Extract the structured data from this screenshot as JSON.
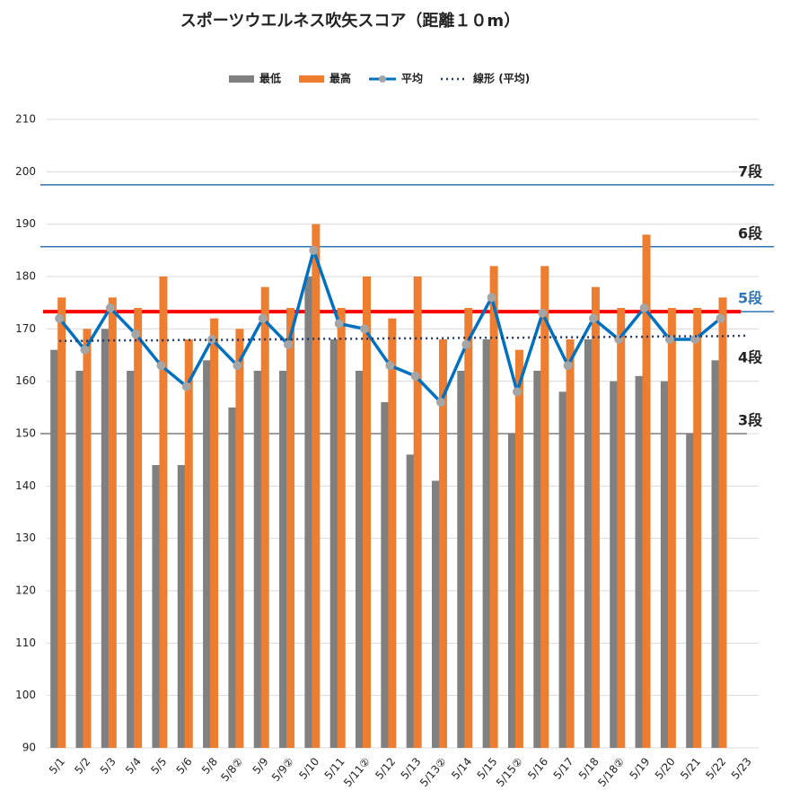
{
  "chart_data": {
    "type": "bar_line",
    "title": "スポーツウエルネス吹矢スコア（距離１０m）",
    "categories": [
      "5/1",
      "5/2",
      "5/3",
      "5/4",
      "5/5",
      "5/6",
      "5/8",
      "5/8②",
      "5/9",
      "5/9②",
      "5/10",
      "5/11",
      "5/11②",
      "5/12",
      "5/13",
      "5/13②",
      "5/14",
      "5/15",
      "5/15②",
      "5/16",
      "5/17",
      "5/18",
      "5/18②",
      "5/19",
      "5/20",
      "5/21",
      "5/22",
      "5/23"
    ],
    "series": [
      {
        "name": "最低",
        "kind": "bar",
        "color": "#808080",
        "values": [
          166,
          162,
          170,
          162,
          144,
          144,
          164,
          155,
          162,
          162,
          180,
          168,
          162,
          156,
          146,
          141,
          162,
          168,
          150,
          162,
          158,
          168,
          160,
          161,
          160,
          150,
          164,
          null
        ]
      },
      {
        "name": "最高",
        "kind": "bar",
        "color": "#ed7d31",
        "values": [
          176,
          170,
          176,
          174,
          180,
          168,
          172,
          170,
          178,
          174,
          190,
          174,
          180,
          172,
          180,
          168,
          174,
          182,
          166,
          182,
          168,
          178,
          174,
          188,
          174,
          174,
          176,
          null
        ]
      },
      {
        "name": "平均",
        "kind": "line",
        "color": "#0070c0",
        "marker_color": "#a5a5a5",
        "values": [
          172,
          166,
          174,
          169,
          163,
          159,
          168,
          163,
          172,
          167,
          185,
          171,
          170,
          163,
          161,
          156,
          167,
          176,
          158,
          173,
          163,
          172,
          168,
          174,
          168,
          168,
          172,
          null
        ]
      },
      {
        "name": "線形 (平均)",
        "kind": "trend",
        "color": "#1f3864",
        "values": [
          167.7,
          167.7,
          167.8,
          167.8,
          167.8,
          167.9,
          167.9,
          167.9,
          168.0,
          168.0,
          168.1,
          168.1,
          168.1,
          168.2,
          168.2,
          168.2,
          168.3,
          168.3,
          168.3,
          168.4,
          168.4,
          168.4,
          168.5,
          168.5,
          168.6,
          168.6,
          168.6,
          168.7
        ]
      }
    ],
    "reference_lines": [
      {
        "label": "7段",
        "value": 197.5,
        "color": "#2e75b6",
        "label_color": "#222222",
        "line": true
      },
      {
        "label": "6段",
        "value": 185.7,
        "color": "#2e75b6",
        "label_color": "#222222",
        "line": true
      },
      {
        "label": "5段",
        "value": 173.3,
        "color": "#ff0000",
        "label_color": "#2e75b6",
        "line": true
      },
      {
        "label": "4段",
        "value": 162,
        "color": "#7f7f7f",
        "label_color": "#222222",
        "line": false
      },
      {
        "label": "3段",
        "value": 150,
        "color": "#7f7f7f",
        "label_color": "#222222",
        "line": true
      }
    ],
    "ylim": [
      90,
      210
    ],
    "yticks": [
      90,
      100,
      110,
      120,
      130,
      140,
      150,
      160,
      170,
      180,
      190,
      200,
      210
    ],
    "grid": true,
    "legend": "top"
  }
}
